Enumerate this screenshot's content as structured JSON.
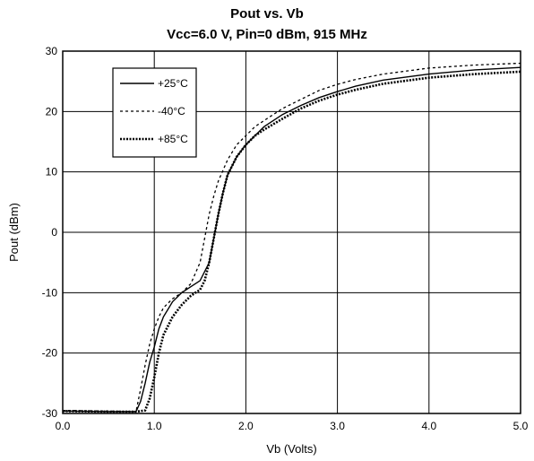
{
  "chart_data": {
    "type": "line",
    "title": "Pout vs. Vb",
    "subtitle": "Vcc=6.0 V, Pin=0 dBm, 915 MHz",
    "xlabel": "Vb (Volts)",
    "ylabel": "Pout (dBm)",
    "xlim": [
      0.0,
      5.0
    ],
    "ylim": [
      -30,
      30
    ],
    "xticks": [
      "0.0",
      "1.0",
      "2.0",
      "3.0",
      "4.0",
      "5.0"
    ],
    "yticks": [
      "30",
      "20",
      "10",
      "0",
      "-10",
      "-20",
      "-30"
    ],
    "grid": true,
    "legend_position": "top-left",
    "series": [
      {
        "name": "+25°C",
        "style": "solid",
        "x": [
          0.0,
          0.5,
          0.8,
          0.85,
          0.9,
          0.95,
          1.0,
          1.05,
          1.1,
          1.2,
          1.3,
          1.4,
          1.5,
          1.6,
          1.65,
          1.7,
          1.75,
          1.8,
          1.9,
          2.0,
          2.1,
          2.2,
          2.4,
          2.6,
          2.8,
          3.0,
          3.2,
          3.5,
          4.0,
          4.5,
          5.0
        ],
        "y": [
          -29.6,
          -29.7,
          -29.7,
          -28,
          -25,
          -21.5,
          -19,
          -16,
          -14,
          -11.5,
          -10,
          -9,
          -8,
          -5,
          -1,
          3,
          6.5,
          9.5,
          12.5,
          14.5,
          16,
          17.5,
          19.5,
          21,
          22.3,
          23.3,
          24.2,
          25.2,
          26.2,
          26.9,
          27.3
        ]
      },
      {
        "name": "-40°C",
        "style": "dashed",
        "x": [
          0.0,
          0.5,
          0.8,
          0.85,
          0.9,
          0.95,
          1.0,
          1.05,
          1.1,
          1.2,
          1.3,
          1.4,
          1.5,
          1.55,
          1.6,
          1.65,
          1.7,
          1.8,
          1.9,
          2.0,
          2.1,
          2.2,
          2.4,
          2.6,
          2.8,
          3.0,
          3.2,
          3.5,
          4.0,
          4.5,
          5.0
        ],
        "y": [
          -29.5,
          -29.6,
          -29.7,
          -26,
          -22,
          -18.5,
          -16,
          -14,
          -12.5,
          -11,
          -10,
          -8.5,
          -5,
          -1,
          3,
          6,
          8.5,
          12,
          14.5,
          16,
          17.5,
          18.5,
          20.5,
          22,
          23.5,
          24.5,
          25.3,
          26.2,
          27.2,
          27.7,
          28.0
        ]
      },
      {
        "name": "+85°C",
        "style": "dash-dot",
        "x": [
          0.0,
          0.5,
          0.8,
          0.9,
          0.95,
          1.0,
          1.05,
          1.1,
          1.2,
          1.3,
          1.4,
          1.5,
          1.55,
          1.6,
          1.65,
          1.7,
          1.75,
          1.8,
          1.9,
          2.0,
          2.1,
          2.2,
          2.4,
          2.6,
          2.8,
          3.0,
          3.2,
          3.5,
          4.0,
          4.5,
          5.0
        ],
        "y": [
          -29.6,
          -29.7,
          -29.7,
          -29.5,
          -27.5,
          -24,
          -20,
          -17,
          -14,
          -12,
          -10.5,
          -9.5,
          -8,
          -5,
          -1,
          3,
          6.5,
          9.5,
          12.5,
          14.5,
          16,
          17,
          18.8,
          20.5,
          21.8,
          22.8,
          23.6,
          24.6,
          25.6,
          26.2,
          26.6
        ]
      }
    ]
  }
}
